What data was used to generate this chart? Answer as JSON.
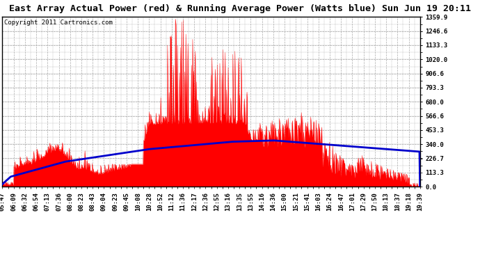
{
  "title": "East Array Actual Power (red) & Running Average Power (Watts blue) Sun Jun 19 20:11",
  "copyright": "Copyright 2011 Cartronics.com",
  "ymax": 1359.9,
  "yticks": [
    0.0,
    113.3,
    226.7,
    340.0,
    453.3,
    566.6,
    680.0,
    793.3,
    906.6,
    1020.0,
    1133.3,
    1246.6,
    1359.9
  ],
  "xtick_labels": [
    "05:47",
    "06:09",
    "06:32",
    "06:54",
    "07:13",
    "07:36",
    "08:00",
    "08:23",
    "08:43",
    "09:04",
    "09:23",
    "09:45",
    "10:08",
    "10:28",
    "10:52",
    "11:12",
    "11:36",
    "12:17",
    "12:36",
    "12:55",
    "13:16",
    "13:35",
    "13:55",
    "14:16",
    "14:36",
    "15:00",
    "15:21",
    "15:41",
    "16:03",
    "16:24",
    "16:47",
    "17:01",
    "17:29",
    "17:50",
    "18:13",
    "18:37",
    "19:18",
    "19:39"
  ],
  "background_color": "#ffffff",
  "plot_bg_color": "#ffffff",
  "actual_color": "#ff0000",
  "avg_color": "#0000cc",
  "grid_color": "#aaaaaa",
  "title_fontsize": 9.5,
  "copyright_fontsize": 6.5,
  "tick_fontsize": 6.5
}
